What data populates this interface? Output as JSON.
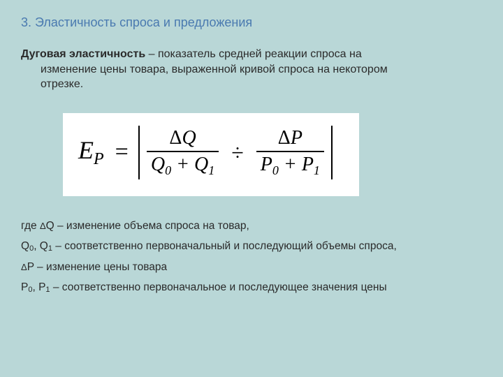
{
  "title": "3. Эластичность спроса и предложения",
  "definition": {
    "term": "Дуговая эластичность",
    "sep": " – ",
    "text1": "показатель средней реакции спроса на",
    "text2": "изменение цены товара, выраженной кривой спроса на некотором",
    "text3": "отрезке."
  },
  "formula": {
    "lhs_E": "E",
    "lhs_sub": "P",
    "eq": "=",
    "frac1_num_delta": "Δ",
    "frac1_num": "Q",
    "frac1_den_a": "Q",
    "frac1_den_a_sub": "0",
    "frac1_den_plus": " + ",
    "frac1_den_b": "Q",
    "frac1_den_b_sub": "1",
    "div": "÷",
    "frac2_num_delta": "Δ",
    "frac2_num": "P",
    "frac2_den_a": "P",
    "frac2_den_a_sub": "0",
    "frac2_den_plus": " + ",
    "frac2_den_b": "P",
    "frac2_den_b_sub": "1"
  },
  "legend": {
    "l1_a": "где  ",
    "l1_delta": "Δ",
    "l1_b": "Q – изменение объема спроса на товар,",
    "l2_a": "Q",
    "l2_a_sub": "0",
    "l2_mid": ", Q",
    "l2_b_sub": "1",
    "l2_rest": " – соответственно первоначальный и последующий объемы спроса,",
    "l3_delta": "Δ",
    "l3_rest": "P – изменение цены товара",
    "l4_a": "P",
    "l4_a_sub": "0",
    "l4_mid": ", P",
    "l4_b_sub": "1",
    "l4_rest": " – соответственно первоначальное и последующее значения цены"
  }
}
